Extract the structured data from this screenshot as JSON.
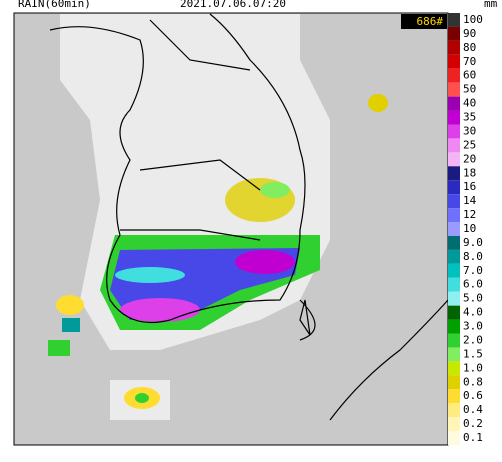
{
  "header": {
    "product": "RAIN(60min)",
    "time": "2021.07.06.07:20",
    "unit": "mm"
  },
  "badge": "686#",
  "legend": {
    "levels": [
      {
        "label": "100",
        "color": "#333333"
      },
      {
        "label": "90",
        "color": "#7a0000"
      },
      {
        "label": "80",
        "color": "#b00000"
      },
      {
        "label": "70",
        "color": "#d40000"
      },
      {
        "label": "60",
        "color": "#ee2222"
      },
      {
        "label": "50",
        "color": "#ff5050"
      },
      {
        "label": "40",
        "color": "#9a00b0"
      },
      {
        "label": "35",
        "color": "#c000d0"
      },
      {
        "label": "30",
        "color": "#dd40e8"
      },
      {
        "label": "25",
        "color": "#ee88f2"
      },
      {
        "label": "20",
        "color": "#f4b4f6"
      },
      {
        "label": "18",
        "color": "#1a1a80"
      },
      {
        "label": "16",
        "color": "#2a2ac0"
      },
      {
        "label": "14",
        "color": "#4848e8"
      },
      {
        "label": "12",
        "color": "#7070ff"
      },
      {
        "label": "10",
        "color": "#9a9aff"
      },
      {
        "label": "9.0",
        "color": "#006e70"
      },
      {
        "label": "8.0",
        "color": "#009a9a"
      },
      {
        "label": "7.0",
        "color": "#00c0c0"
      },
      {
        "label": "6.0",
        "color": "#40dede"
      },
      {
        "label": "5.0",
        "color": "#90f0f0"
      },
      {
        "label": "4.0",
        "color": "#006400"
      },
      {
        "label": "3.0",
        "color": "#00a000"
      },
      {
        "label": "2.0",
        "color": "#30d030"
      },
      {
        "label": "1.5",
        "color": "#80ee60"
      },
      {
        "label": "1.0",
        "color": "#c8e800"
      },
      {
        "label": "0.8",
        "color": "#e0d000"
      },
      {
        "label": "0.6",
        "color": "#ffdc30"
      },
      {
        "label": "0.4",
        "color": "#ffec80"
      },
      {
        "label": "0.2",
        "color": "#fff6b8"
      },
      {
        "label": "0.1",
        "color": "#fffbe0"
      }
    ]
  }
}
